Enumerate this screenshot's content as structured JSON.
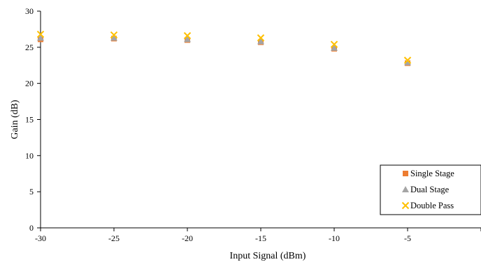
{
  "chart_data": {
    "type": "scatter",
    "xlabel": "Input Signal (dBm)",
    "ylabel": "Gain (dB)",
    "xlim": [
      -30,
      0
    ],
    "ylim": [
      0,
      30
    ],
    "x_ticks": [
      -30,
      -25,
      -20,
      -15,
      -10,
      -5
    ],
    "y_ticks": [
      0,
      5,
      10,
      15,
      20,
      25,
      30
    ],
    "legend_position": "bottom-right",
    "series": [
      {
        "name": "Single Stage",
        "marker": "square",
        "color": "#ED7D31",
        "x": [
          -30,
          -25,
          -20,
          -15,
          -10,
          -5
        ],
        "y": [
          26.1,
          26.2,
          26.0,
          25.7,
          24.8,
          22.8
        ]
      },
      {
        "name": "Dual Stage",
        "marker": "triangle",
        "color": "#A5A5A5",
        "x": [
          -30,
          -25,
          -20,
          -15,
          -10,
          -5
        ],
        "y": [
          26.3,
          26.3,
          26.1,
          25.8,
          24.9,
          22.9
        ]
      },
      {
        "name": "Double Pass",
        "marker": "x",
        "color": "#FFC000",
        "x": [
          -30,
          -25,
          -20,
          -15,
          -10,
          -5
        ],
        "y": [
          26.8,
          26.7,
          26.6,
          26.3,
          25.4,
          23.2
        ]
      }
    ]
  }
}
